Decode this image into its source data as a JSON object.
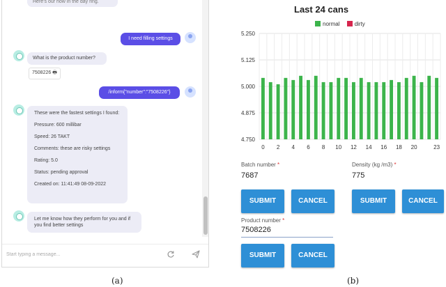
{
  "chat": {
    "top_fragment": "Here's our how in the day ring.",
    "user_msg_1": "I need filling settings",
    "bot_question": "What is the product number?",
    "product_chip": "7508226 🖶",
    "user_msg_2": "/inform{\"number\":\"7508226\"}",
    "bot_settings_lines": [
      "These were the fastest settings I found:",
      "Pressure: 600 millibar",
      "Speed: 26 TAKT",
      "Comments: these are risky settings",
      "Rating: 5.0",
      "Status: pending approval",
      "Created on: 11:41:49 08-09-2022"
    ],
    "bot_final": "Let me know how they perform for you and if you find better settings",
    "input_placeholder": "Start typing a message...",
    "refresh_icon": "refresh-icon",
    "send_icon": "send-icon"
  },
  "captions": {
    "a": "(a)",
    "b": "(b)"
  },
  "chart_data": {
    "type": "bar",
    "title": "Last 24 cans",
    "legend": [
      {
        "name": "normal",
        "color": "#3cb44b"
      },
      {
        "name": "dirty",
        "color": "#d6254d"
      }
    ],
    "x": [
      0,
      1,
      2,
      3,
      4,
      5,
      6,
      7,
      8,
      9,
      10,
      11,
      12,
      13,
      14,
      15,
      16,
      17,
      18,
      19,
      20,
      21,
      22,
      23
    ],
    "x_tick_labels": [
      "0",
      "2",
      "4",
      "6",
      "8",
      "10",
      "12",
      "14",
      "16",
      "18",
      "20",
      "23"
    ],
    "x_tick_positions": [
      0,
      2,
      4,
      6,
      8,
      10,
      12,
      14,
      16,
      18,
      20,
      23
    ],
    "y_ticks": [
      "4.750",
      "4.875",
      "5.000",
      "5.125",
      "5.250"
    ],
    "ylim": [
      4.75,
      5.25
    ],
    "series": [
      {
        "name": "normal",
        "values": [
          5.04,
          5.02,
          5.01,
          5.04,
          5.03,
          5.05,
          5.03,
          5.05,
          5.02,
          5.02,
          5.04,
          5.04,
          5.02,
          5.04,
          5.02,
          5.02,
          5.02,
          5.03,
          5.02,
          5.04,
          5.05,
          5.02,
          5.05,
          5.04
        ]
      }
    ],
    "grid": true,
    "legend_position": "top"
  },
  "form": {
    "batch_label": "Batch number",
    "batch_value": "7687",
    "density_label": "Density (kg /m3)",
    "density_value": "775",
    "product_label": "Product number",
    "product_value": "7508226",
    "required_mark": "*",
    "submit": "SUBMIT",
    "cancel": "CANCEL"
  }
}
